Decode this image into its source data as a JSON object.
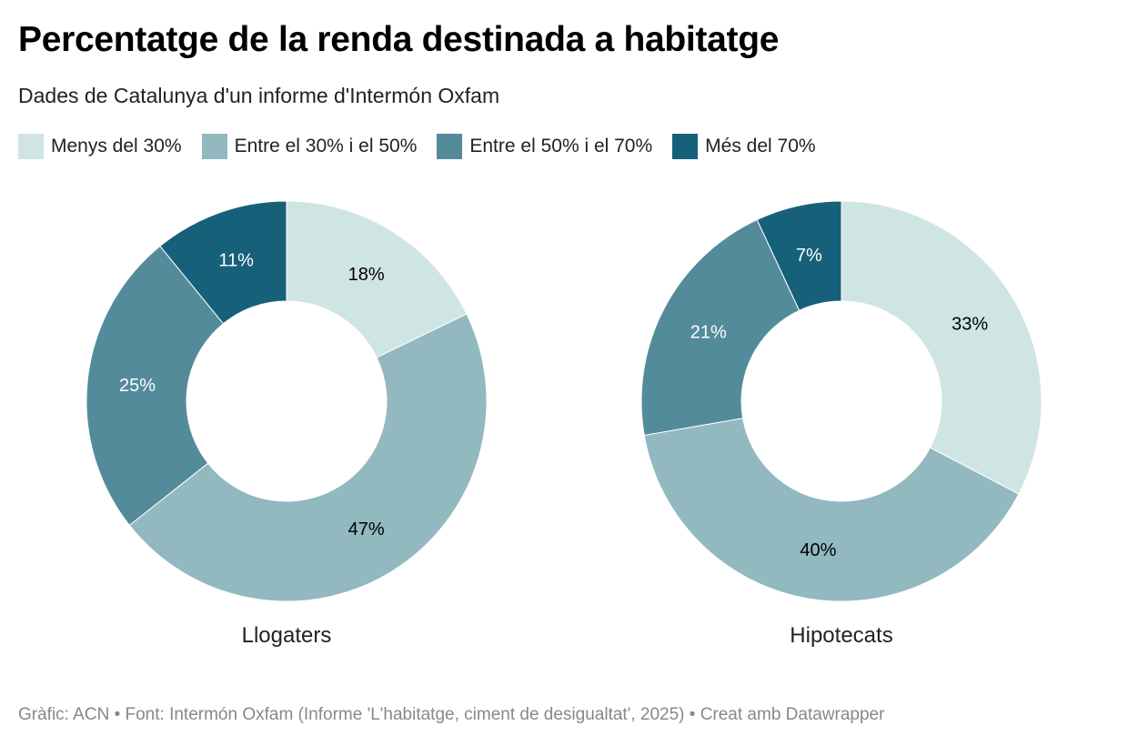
{
  "title": "Percentatge de la renda destinada a habitatge",
  "subtitle": "Dades de Catalunya d'un informe d'Intermón Oxfam",
  "footer": "Gràfic: ACN • Font: Intermón Oxfam (Informe 'L'habitatge, ciment de desigualtat', 2025) • Creat amb Datawrapper",
  "chart_data": {
    "type": "pie",
    "variant": "donut",
    "legend_position": "top",
    "categories": [
      "Menys del 30%",
      "Entre el 30% i el 50%",
      "Entre el 50% i el 70%",
      "Més del 70%"
    ],
    "colors": [
      "#cfe5e3",
      "#92b8c0",
      "#548b9b",
      "#17607a"
    ],
    "label_colors": [
      "#000000",
      "#000000",
      "#ffffff",
      "#ffffff"
    ],
    "series": [
      {
        "name": "Llogaters",
        "values": [
          18,
          47,
          25,
          11
        ]
      },
      {
        "name": "Hipotecats",
        "values": [
          33,
          40,
          21,
          7
        ]
      }
    ]
  }
}
